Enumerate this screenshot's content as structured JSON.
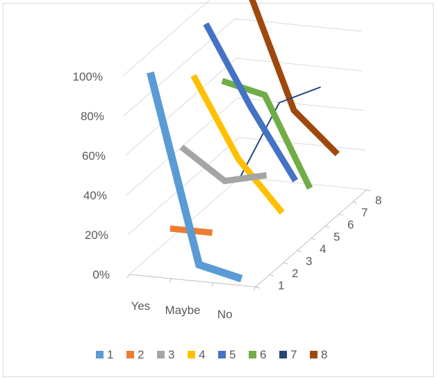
{
  "chart_data": {
    "type": "line",
    "three_d": true,
    "categories": [
      "Yes",
      "Maybe",
      "No"
    ],
    "y_ticks": [
      "0%",
      "20%",
      "40%",
      "60%",
      "80%",
      "100%"
    ],
    "ylim": [
      0,
      100
    ],
    "depth_ticks": [
      "1",
      "2",
      "3",
      "4",
      "5",
      "6",
      "7",
      "8"
    ],
    "legend_position": "bottom",
    "grid": true,
    "series": [
      {
        "name": "1",
        "color": "#5B9BD5",
        "values": [
          100,
          5,
          0
        ]
      },
      {
        "name": "2",
        "color": "#ED7D31",
        "values": [
          15,
          15,
          null
        ]
      },
      {
        "name": "3",
        "color": "#A5A5A5",
        "values": [
          50,
          35,
          40
        ]
      },
      {
        "name": "4",
        "color": "#FFC000",
        "values": [
          80,
          40,
          15
        ]
      },
      {
        "name": "5",
        "color": "#4472C4",
        "values": [
          100,
          60,
          25
        ]
      },
      {
        "name": "6",
        "color": "#70AD47",
        "values": [
          65,
          60,
          15
        ]
      },
      {
        "name": "7",
        "color": "#264478",
        "values": [
          10,
          50,
          60
        ]
      },
      {
        "name": "8",
        "color": "#9E480E",
        "values": [
          100,
          40,
          20
        ]
      }
    ]
  }
}
